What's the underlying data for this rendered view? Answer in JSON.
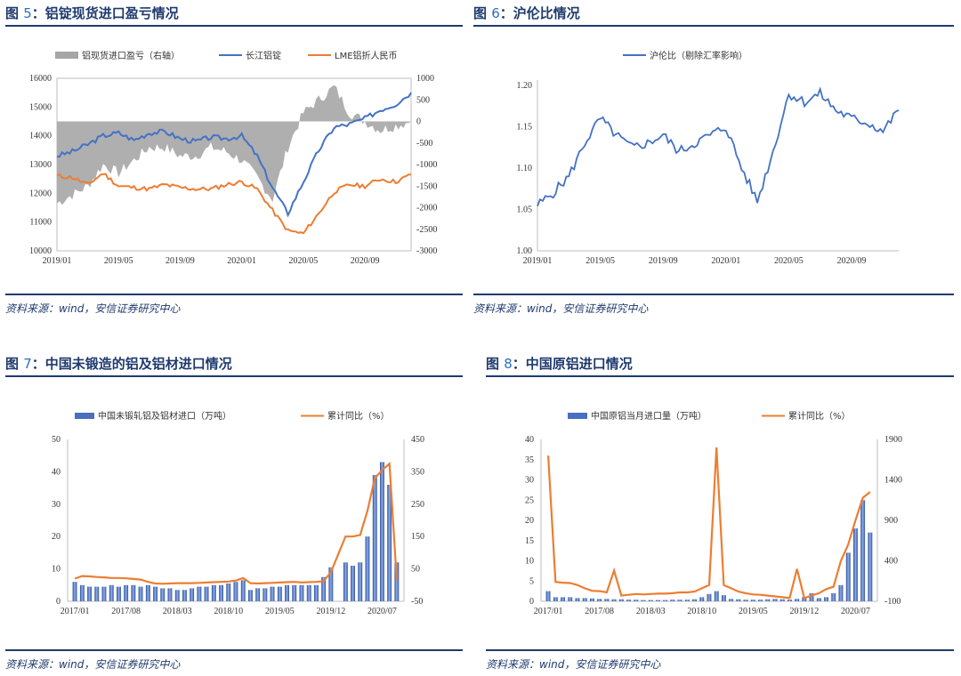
{
  "panels": {
    "p1": {
      "fig_label": "图",
      "fig_num": "5",
      "fig_title": "：铝锭现货进口盈亏情况",
      "source": "资料来源：wind，安信证券研究中心"
    },
    "p2": {
      "fig_label": "图",
      "fig_num": "6",
      "fig_title": "：沪伦比情况",
      "source": "资料来源：wind，安信证券研究中心"
    },
    "p3": {
      "fig_label": "图",
      "fig_num": "7",
      "fig_title": "：中国未锻造的铝及铝材进口情况",
      "source": "资料来源：wind，安信证券研究中心"
    },
    "p4": {
      "fig_label": "图",
      "fig_num": "8",
      "fig_title": "：中国原铝进口情况",
      "source": "资料来源：wind，安信证券研究中心"
    }
  },
  "colors": {
    "blue": "#4472c4",
    "orange": "#ed7d31",
    "gray": "#a6a6a6",
    "bar_blue": "#4a6fc0",
    "title": "#1f3a6e"
  },
  "chart_data": [
    {
      "type": "line",
      "chart_key": "c1",
      "title": "",
      "x_ticks": [
        "2019/01",
        "2019/05",
        "2019/09",
        "2020/01",
        "2020/05",
        "2020/09"
      ],
      "ylim": [
        10000,
        16000
      ],
      "y_ticks": [
        "10000",
        "11000",
        "12000",
        "13000",
        "14000",
        "15000",
        "16000"
      ],
      "y2lim": [
        -3000,
        1000
      ],
      "y2_ticks": [
        "-3000",
        "-2500",
        "-2000",
        "-1500",
        "-1000",
        "-500",
        "0",
        "500",
        "1000"
      ],
      "legend_position": "top",
      "series": [
        {
          "name": "铝现货进口盈亏（右轴）",
          "type": "area",
          "axis": "right",
          "color": "#a6a6a6",
          "x": [
            "2019/01",
            "2019/02",
            "2019/03",
            "2019/04",
            "2019/05",
            "2019/06",
            "2019/07",
            "2019/08",
            "2019/09",
            "2019/10",
            "2019/11",
            "2019/12",
            "2020/01",
            "2020/02",
            "2020/03",
            "2020/04",
            "2020/05",
            "2020/06",
            "2020/07",
            "2020/08",
            "2020/09",
            "2020/10",
            "2020/11",
            "2020/12"
          ],
          "values": [
            -1900,
            -1700,
            -1500,
            -1000,
            -1200,
            -900,
            -600,
            -600,
            -800,
            -800,
            -600,
            -700,
            -900,
            -1300,
            -1800,
            -600,
            200,
            500,
            800,
            200,
            0,
            -200,
            -100,
            0
          ]
        },
        {
          "name": "长江铝锭",
          "type": "line",
          "axis": "left",
          "color": "#4472c4",
          "x": [
            "2019/01",
            "2019/02",
            "2019/03",
            "2019/04",
            "2019/05",
            "2019/06",
            "2019/07",
            "2019/08",
            "2019/09",
            "2019/10",
            "2019/11",
            "2019/12",
            "2020/01",
            "2020/02",
            "2020/03",
            "2020/04",
            "2020/05",
            "2020/06",
            "2020/07",
            "2020/08",
            "2020/09",
            "2020/10",
            "2020/11",
            "2020/12"
          ],
          "values": [
            13300,
            13450,
            13700,
            14000,
            14100,
            13850,
            14100,
            14150,
            13900,
            13800,
            13950,
            13900,
            14000,
            13300,
            12200,
            11300,
            12400,
            13500,
            14300,
            14400,
            14600,
            14900,
            15100,
            15500
          ]
        },
        {
          "name": "LME铝折人民币",
          "type": "line",
          "axis": "left",
          "color": "#ed7d31",
          "x": [
            "2019/01",
            "2019/02",
            "2019/03",
            "2019/04",
            "2019/05",
            "2019/06",
            "2019/07",
            "2019/08",
            "2019/09",
            "2019/10",
            "2019/11",
            "2019/12",
            "2020/01",
            "2020/02",
            "2020/03",
            "2020/04",
            "2020/05",
            "2020/06",
            "2020/07",
            "2020/08",
            "2020/09",
            "2020/10",
            "2020/11",
            "2020/12"
          ],
          "values": [
            12600,
            12550,
            12300,
            12700,
            12250,
            12200,
            12150,
            12300,
            12200,
            12150,
            12150,
            12300,
            12400,
            12150,
            11400,
            10700,
            10600,
            11300,
            12050,
            12300,
            12250,
            12500,
            12400,
            12650
          ]
        }
      ]
    },
    {
      "type": "line",
      "chart_key": "c2",
      "title": "",
      "x_ticks": [
        "2019/01",
        "2019/05",
        "2019/09",
        "2020/01",
        "2020/05",
        "2020/09"
      ],
      "ylim": [
        1.0,
        1.2
      ],
      "y_ticks": [
        "1.00",
        "1.05",
        "1.10",
        "1.15",
        "1.20"
      ],
      "legend_position": "top",
      "series": [
        {
          "name": "沪伦比（剔除汇率影响）",
          "color": "#4472c4",
          "x": [
            "2019/01",
            "2019/02",
            "2019/03",
            "2019/04",
            "2019/05",
            "2019/06",
            "2019/07",
            "2019/08",
            "2019/09",
            "2019/10",
            "2019/11",
            "2019/12",
            "2020/01",
            "2020/02",
            "2020/03",
            "2020/04",
            "2020/05",
            "2020/06",
            "2020/07",
            "2020/08",
            "2020/09",
            "2020/10",
            "2020/11",
            "2020/12"
          ],
          "values": [
            1.055,
            1.07,
            1.09,
            1.13,
            1.16,
            1.14,
            1.125,
            1.13,
            1.14,
            1.12,
            1.13,
            1.14,
            1.15,
            1.1,
            1.06,
            1.12,
            1.19,
            1.18,
            1.19,
            1.17,
            1.16,
            1.155,
            1.145,
            1.17
          ]
        }
      ]
    },
    {
      "type": "bar",
      "chart_key": "c3",
      "title": "",
      "x_ticks": [
        "2017/01",
        "2017/08",
        "2018/03",
        "2018/10",
        "2019/05",
        "2019/12",
        "2020/07"
      ],
      "ylim": [
        0,
        50
      ],
      "y_ticks": [
        "0",
        "10",
        "20",
        "30",
        "40",
        "50"
      ],
      "y2lim": [
        -50,
        450
      ],
      "y2_ticks": [
        "-50",
        "50",
        "150",
        "250",
        "350",
        "450"
      ],
      "legend_position": "top",
      "series": [
        {
          "name": "中国未锻轧铝及铝材进口（万吨）",
          "type": "bar",
          "axis": "left",
          "color": "#4a6fc0",
          "values": [
            6,
            5,
            4.5,
            4.5,
            4.5,
            5,
            4.5,
            5,
            5,
            4.5,
            5,
            4.5,
            4,
            4,
            3.5,
            3.5,
            4,
            4.5,
            4.5,
            5,
            5,
            5.5,
            6,
            6.5,
            3.5,
            4,
            4,
            4.5,
            4.5,
            5,
            5,
            5,
            5,
            5,
            7.5,
            10.5,
            0,
            12,
            11,
            12,
            20,
            39,
            43,
            36,
            12
          ]
        },
        {
          "name": "累计同比（%）",
          "type": "line",
          "axis": "right",
          "color": "#ed7d31",
          "values": [
            20,
            28,
            27,
            25,
            24,
            22,
            22,
            21,
            19,
            17,
            10,
            5,
            4,
            5,
            6,
            6,
            6,
            7,
            8,
            9,
            10,
            11,
            14,
            22,
            6,
            5,
            6,
            7,
            8,
            9,
            10,
            8,
            9,
            10,
            12,
            40,
            95,
            150,
            150,
            155,
            230,
            330,
            355,
            375,
            15
          ]
        }
      ]
    },
    {
      "type": "bar",
      "chart_key": "c4",
      "title": "",
      "x_ticks": [
        "2017/01",
        "2017/08",
        "2018/03",
        "2018/10",
        "2019/05",
        "2019/12",
        "2020/07"
      ],
      "ylim": [
        0,
        40
      ],
      "y_ticks": [
        "0",
        "5",
        "10",
        "15",
        "20",
        "25",
        "30",
        "35",
        "40"
      ],
      "y2lim": [
        -100,
        1900
      ],
      "y2_ticks": [
        "-100",
        "400",
        "900",
        "1400",
        "1900"
      ],
      "legend_position": "top",
      "series": [
        {
          "name": "中国原铝当月进口量（万吨）",
          "type": "bar",
          "axis": "left",
          "color": "#4a6fc0",
          "values": [
            2.5,
            1,
            1,
            1,
            0.8,
            0.8,
            0.7,
            0.6,
            0.6,
            0.5,
            0.5,
            0.4,
            0.4,
            0.3,
            0.3,
            0.3,
            0.3,
            0.4,
            0.4,
            0.4,
            0.5,
            1,
            1.8,
            2.5,
            1.5,
            0.6,
            0.5,
            0.4,
            0.4,
            0.4,
            0.5,
            0.6,
            0.5,
            0.4,
            0.6,
            1,
            2,
            0.8,
            1,
            2,
            4,
            12,
            18,
            25,
            17
          ]
        },
        {
          "name": "累计同比（%）",
          "type": "line",
          "axis": "right",
          "color": "#ed7d31",
          "values": [
            1700,
            140,
            130,
            125,
            100,
            60,
            30,
            25,
            10,
            280,
            -30,
            -20,
            -10,
            -15,
            -10,
            -5,
            -5,
            0,
            10,
            10,
            20,
            60,
            100,
            1800,
            100,
            60,
            20,
            0,
            -15,
            -20,
            -30,
            -40,
            -50,
            -60,
            300,
            -60,
            -30,
            0,
            50,
            80,
            400,
            600,
            900,
            1180,
            1250
          ]
        }
      ]
    }
  ]
}
